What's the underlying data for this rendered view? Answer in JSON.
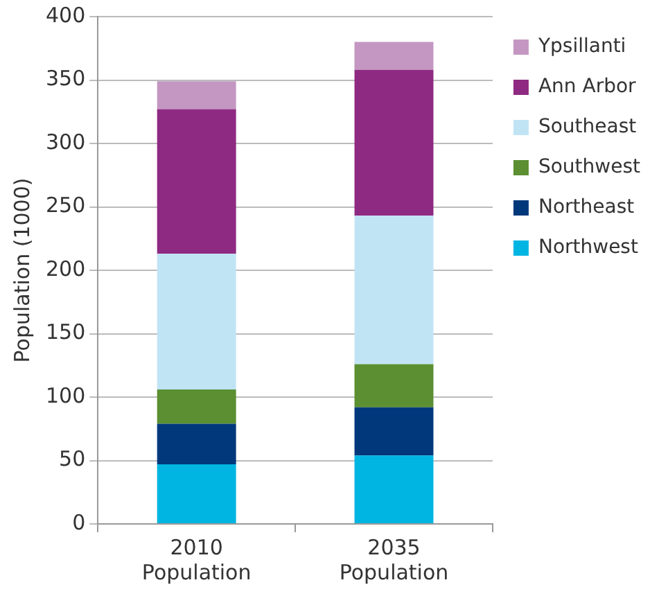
{
  "chart_data": {
    "type": "bar",
    "stacked": true,
    "ylabel": "Population (1000)",
    "categories": [
      "2010 Population",
      "2035 Population"
    ],
    "ylim": [
      0,
      400
    ],
    "yticks": [
      0,
      50,
      100,
      150,
      200,
      250,
      300,
      350,
      400
    ],
    "grid": "y",
    "legend": "right",
    "series": [
      {
        "name": "Northwest",
        "color": "#00b5e2",
        "values": [
          47,
          54
        ]
      },
      {
        "name": "Northeast",
        "color": "#00387b",
        "values": [
          32,
          38
        ]
      },
      {
        "name": "Southwest",
        "color": "#5b8f32",
        "values": [
          27,
          34
        ]
      },
      {
        "name": "Southeast",
        "color": "#c1e4f5",
        "values": [
          107,
          117
        ]
      },
      {
        "name": "Ann Arbor",
        "color": "#8e2a82",
        "values": [
          114,
          115
        ]
      },
      {
        "name": "Ypsillanti",
        "color": "#c497c2",
        "values": [
          22,
          22
        ]
      }
    ]
  }
}
